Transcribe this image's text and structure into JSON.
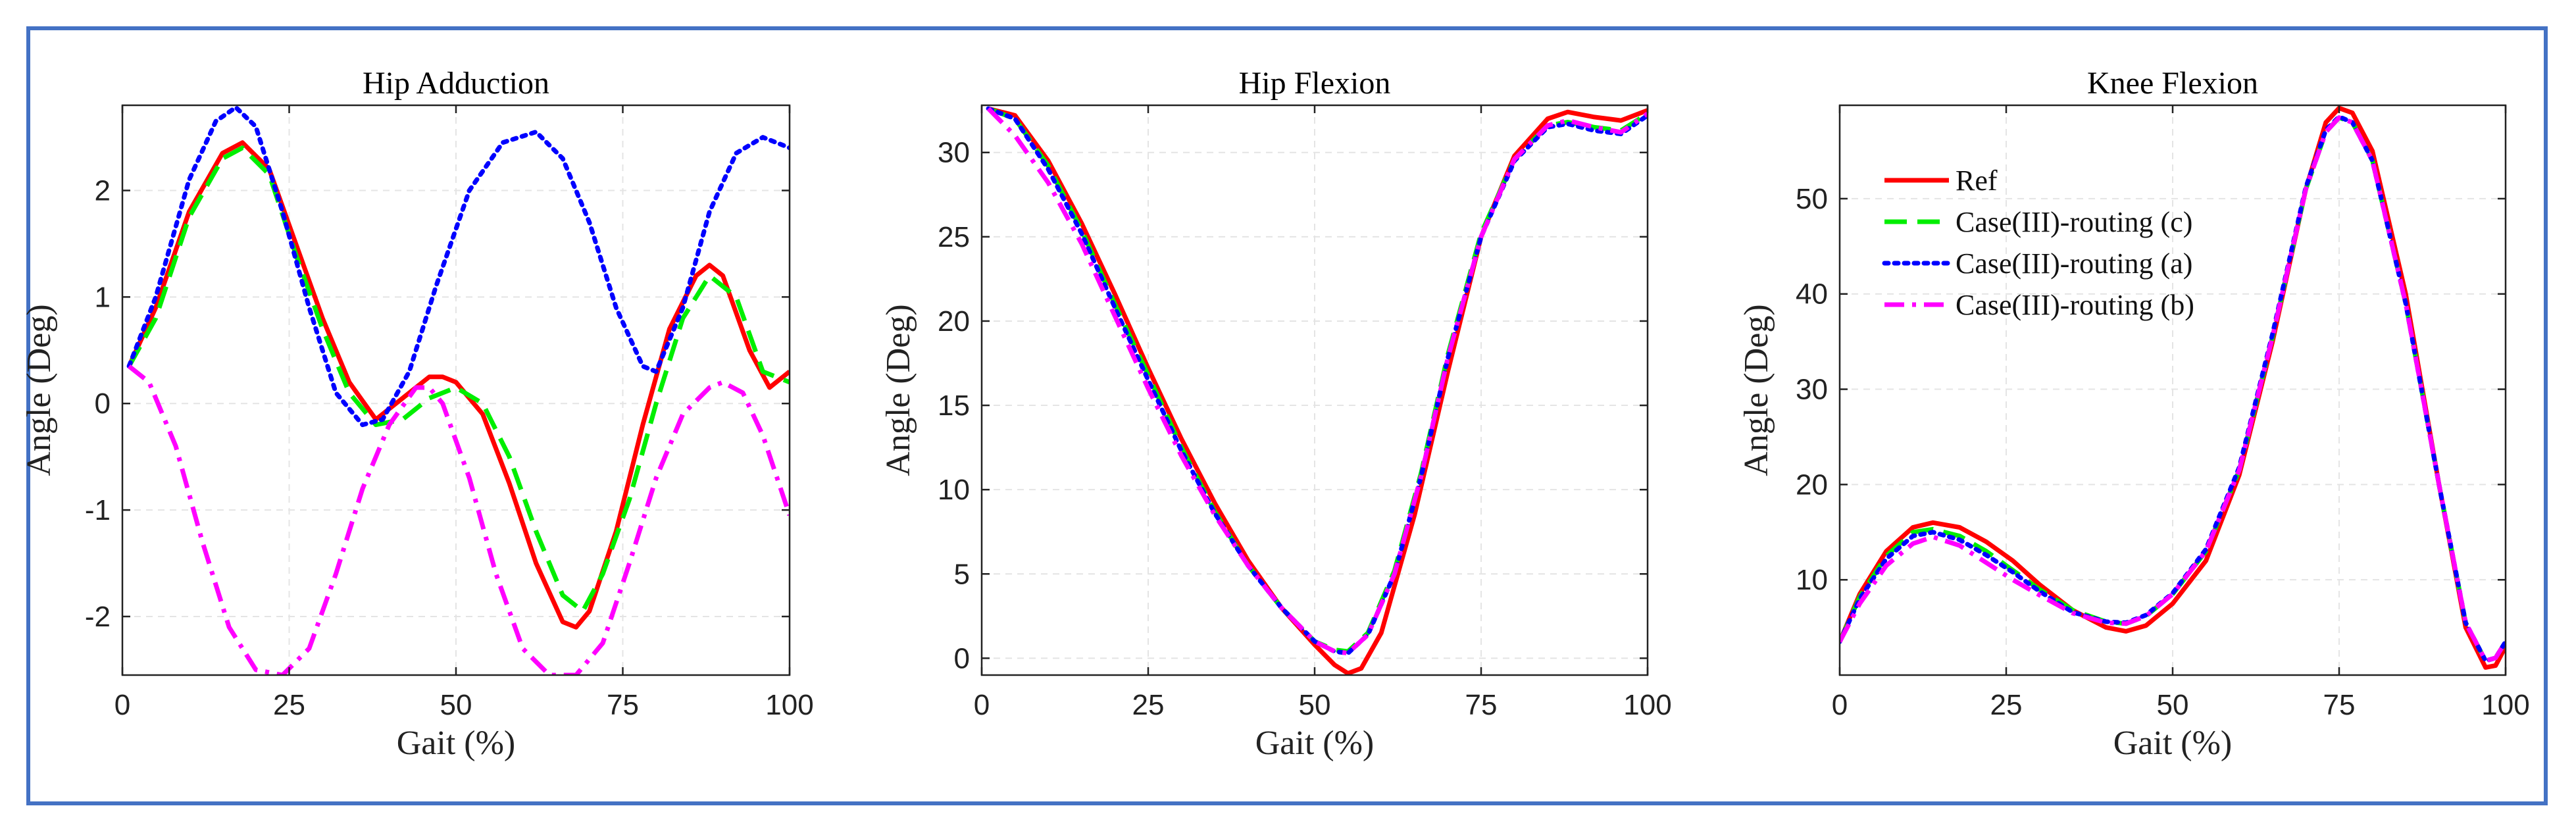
{
  "chart_data": [
    {
      "type": "line",
      "title": "Hip Adduction",
      "xlabel": "Gait (%)",
      "ylabel": "Angle (Deg)",
      "xlim": [
        0,
        100
      ],
      "ylim": [
        -2.55,
        2.8
      ],
      "xticks": [
        0,
        25,
        50,
        75,
        100
      ],
      "yticks": [
        -2,
        -1,
        0,
        1,
        2
      ],
      "grid": true,
      "series": [
        {
          "name": "Ref",
          "color": "#ff0000",
          "dash": "solid",
          "x": [
            1,
            5,
            10,
            15,
            18,
            22,
            26,
            30,
            34,
            38,
            42,
            46,
            48,
            50,
            54,
            58,
            62,
            66,
            68,
            70,
            74,
            78,
            82,
            86,
            88,
            90,
            94,
            97,
            100
          ],
          "y": [
            0.35,
            0.9,
            1.8,
            2.35,
            2.45,
            2.2,
            1.5,
            0.8,
            0.2,
            -0.15,
            0.05,
            0.25,
            0.25,
            0.2,
            -0.1,
            -0.75,
            -1.5,
            -2.05,
            -2.1,
            -1.95,
            -1.2,
            -0.2,
            0.7,
            1.2,
            1.3,
            1.2,
            0.5,
            0.15,
            0.3
          ]
        },
        {
          "name": "Case(III)-routing (c)",
          "color": "#00ee00",
          "dash": "dashed",
          "x": [
            1,
            5,
            10,
            15,
            18,
            22,
            26,
            30,
            34,
            38,
            42,
            46,
            50,
            54,
            58,
            62,
            66,
            69,
            72,
            76,
            80,
            84,
            88,
            92,
            96,
            100
          ],
          "y": [
            0.35,
            0.8,
            1.75,
            2.3,
            2.4,
            2.15,
            1.4,
            0.7,
            0.1,
            -0.2,
            -0.15,
            0.05,
            0.15,
            0.0,
            -0.5,
            -1.2,
            -1.8,
            -1.95,
            -1.6,
            -0.9,
            0.0,
            0.8,
            1.2,
            1.0,
            0.3,
            0.2
          ]
        },
        {
          "name": "Case(III)-routing (a)",
          "color": "#0000ff",
          "dash": "dotted",
          "x": [
            1,
            5,
            10,
            14,
            17,
            20,
            24,
            28,
            32,
            36,
            39,
            43,
            47,
            52,
            57,
            62,
            66,
            70,
            74,
            78,
            80,
            84,
            88,
            92,
            96,
            100
          ],
          "y": [
            0.35,
            1.0,
            2.1,
            2.65,
            2.78,
            2.6,
            1.8,
            0.9,
            0.1,
            -0.2,
            -0.15,
            0.3,
            1.1,
            2.0,
            2.45,
            2.55,
            2.3,
            1.7,
            0.9,
            0.35,
            0.3,
            0.9,
            1.8,
            2.35,
            2.5,
            2.4
          ]
        },
        {
          "name": "Case(III)-routing (b)",
          "color": "#ff00ff",
          "dash": "dashdot",
          "x": [
            1,
            4,
            8,
            12,
            16,
            20,
            24,
            28,
            32,
            36,
            40,
            44,
            46,
            48,
            52,
            56,
            60,
            64,
            68,
            72,
            76,
            80,
            84,
            88,
            90,
            93,
            96,
            100
          ],
          "y": [
            0.35,
            0.2,
            -0.4,
            -1.3,
            -2.1,
            -2.5,
            -2.55,
            -2.3,
            -1.6,
            -0.8,
            -0.2,
            0.15,
            0.15,
            0.0,
            -0.7,
            -1.6,
            -2.3,
            -2.55,
            -2.55,
            -2.25,
            -1.5,
            -0.7,
            -0.1,
            0.15,
            0.2,
            0.1,
            -0.3,
            -1.05
          ]
        }
      ]
    },
    {
      "type": "line",
      "title": "Hip Flexion",
      "xlabel": "Gait (%)",
      "ylabel": "Angle (Deg)",
      "xlim": [
        0,
        100
      ],
      "ylim": [
        -1,
        32.8
      ],
      "xticks": [
        0,
        25,
        50,
        75,
        100
      ],
      "yticks": [
        0,
        5,
        10,
        15,
        20,
        25,
        30
      ],
      "grid": true,
      "series": [
        {
          "name": "Ref",
          "color": "#ff0000",
          "dash": "solid",
          "x": [
            1,
            5,
            10,
            15,
            20,
            25,
            30,
            35,
            40,
            45,
            50,
            53,
            55,
            57,
            60,
            65,
            70,
            75,
            80,
            85,
            88,
            92,
            96,
            100
          ],
          "y": [
            32.6,
            32.2,
            29.5,
            25.8,
            21.6,
            17.2,
            13.0,
            9.2,
            5.8,
            3.0,
            0.8,
            -0.4,
            -0.9,
            -0.6,
            1.5,
            8.5,
            17.0,
            25.0,
            29.8,
            32.0,
            32.4,
            32.1,
            31.9,
            32.5
          ]
        },
        {
          "name": "Case(III)-routing (c)",
          "color": "#00ee00",
          "dash": "dashed",
          "x": [
            1,
            5,
            10,
            15,
            20,
            25,
            30,
            35,
            40,
            45,
            50,
            53,
            55,
            58,
            62,
            66,
            70,
            75,
            80,
            85,
            88,
            92,
            96,
            100
          ],
          "y": [
            32.6,
            32.0,
            29.2,
            25.4,
            21.0,
            16.8,
            12.5,
            8.7,
            5.5,
            3.0,
            1.0,
            0.5,
            0.4,
            1.5,
            5.2,
            11.0,
            18.0,
            25.2,
            29.6,
            31.6,
            31.8,
            31.5,
            31.3,
            32.3
          ]
        },
        {
          "name": "Case(III)-routing (a)",
          "color": "#0000ff",
          "dash": "dotted",
          "x": [
            1,
            5,
            10,
            15,
            20,
            25,
            30,
            35,
            40,
            45,
            50,
            53,
            55,
            58,
            62,
            66,
            70,
            75,
            80,
            85,
            88,
            92,
            96,
            100
          ],
          "y": [
            32.6,
            32.0,
            29.0,
            25.2,
            20.8,
            16.5,
            12.3,
            8.6,
            5.5,
            3.0,
            1.0,
            0.4,
            0.3,
            1.4,
            5.0,
            10.8,
            17.8,
            25.0,
            29.5,
            31.5,
            31.7,
            31.3,
            31.1,
            32.2
          ]
        },
        {
          "name": "Case(III)-routing (b)",
          "color": "#ff00ff",
          "dash": "dashdot",
          "x": [
            1,
            5,
            10,
            15,
            20,
            25,
            30,
            35,
            40,
            45,
            50,
            53,
            55,
            58,
            62,
            66,
            70,
            75,
            80,
            85,
            88,
            92,
            96,
            100
          ],
          "y": [
            32.6,
            31.0,
            28.2,
            24.6,
            20.3,
            16.0,
            12.0,
            8.5,
            5.5,
            3.0,
            1.0,
            0.4,
            0.3,
            1.4,
            5.0,
            10.8,
            17.8,
            25.0,
            29.6,
            31.6,
            31.9,
            31.5,
            31.2,
            32.3
          ]
        }
      ]
    },
    {
      "type": "line",
      "title": "Knee Flexion",
      "xlabel": "Gait (%)",
      "ylabel": "Angle (Deg)",
      "xlim": [
        0,
        100
      ],
      "ylim": [
        0,
        59.8
      ],
      "xticks": [
        0,
        25,
        50,
        75,
        100
      ],
      "yticks": [
        10,
        20,
        30,
        40,
        50
      ],
      "grid": true,
      "legend": {
        "location": "upper-left",
        "entries": [
          "Ref",
          "Case(III)-routing (c)",
          "Case(III)-routing (a)",
          "Case(III)-routing (b)"
        ]
      },
      "series": [
        {
          "name": "Ref",
          "color": "#ff0000",
          "dash": "solid",
          "x": [
            0,
            3,
            7,
            11,
            14,
            18,
            22,
            26,
            30,
            35,
            40,
            43,
            46,
            50,
            55,
            60,
            65,
            70,
            73,
            75,
            77,
            80,
            85,
            90,
            94,
            97,
            98.5,
            100
          ],
          "y": [
            3.5,
            8.5,
            13.0,
            15.5,
            16.0,
            15.5,
            14.0,
            12.0,
            9.5,
            6.8,
            5.0,
            4.6,
            5.2,
            7.5,
            12.0,
            21.0,
            35.0,
            51.0,
            58.0,
            59.5,
            59.0,
            55.0,
            40.0,
            20.0,
            5.0,
            0.8,
            1.0,
            3.0
          ]
        },
        {
          "name": "Case(III)-routing (c)",
          "color": "#00ee00",
          "dash": "dashed",
          "x": [
            0,
            3,
            7,
            11,
            14,
            18,
            22,
            26,
            30,
            35,
            40,
            43,
            46,
            50,
            55,
            60,
            65,
            70,
            73,
            75,
            77,
            80,
            85,
            90,
            94,
            97,
            98.5,
            100
          ],
          "y": [
            3.5,
            8.2,
            12.5,
            15.0,
            15.3,
            14.6,
            13.0,
            11.0,
            9.0,
            6.8,
            5.6,
            5.4,
            6.2,
            8.5,
            13.0,
            21.5,
            35.5,
            51.0,
            57.0,
            58.5,
            58.0,
            54.0,
            39.0,
            20.0,
            5.5,
            1.5,
            1.8,
            3.5
          ]
        },
        {
          "name": "Case(III)-routing (a)",
          "color": "#0000ff",
          "dash": "dotted",
          "x": [
            0,
            3,
            7,
            11,
            14,
            18,
            22,
            26,
            30,
            35,
            40,
            43,
            46,
            50,
            55,
            60,
            65,
            70,
            73,
            75,
            77,
            80,
            85,
            90,
            94,
            97,
            98.5,
            100
          ],
          "y": [
            3.5,
            8.0,
            12.2,
            14.6,
            15.0,
            14.2,
            12.6,
            10.8,
            8.8,
            6.6,
            5.6,
            5.5,
            6.3,
            8.6,
            13.2,
            21.8,
            35.8,
            51.2,
            57.2,
            58.6,
            58.0,
            54.0,
            39.0,
            20.0,
            5.5,
            1.5,
            1.8,
            3.5
          ]
        },
        {
          "name": "Case(III)-routing (b)",
          "color": "#ff00ff",
          "dash": "dashdot",
          "x": [
            0,
            3,
            7,
            11,
            14,
            18,
            22,
            26,
            30,
            35,
            40,
            43,
            46,
            50,
            55,
            60,
            65,
            70,
            73,
            75,
            77,
            80,
            85,
            90,
            94,
            97,
            98.5,
            100
          ],
          "y": [
            3.5,
            7.5,
            11.5,
            13.8,
            14.5,
            13.6,
            11.8,
            10.0,
            8.4,
            6.5,
            5.5,
            5.4,
            6.2,
            8.5,
            13.0,
            21.5,
            35.5,
            51.0,
            57.0,
            58.5,
            58.0,
            54.0,
            39.0,
            20.0,
            5.5,
            1.5,
            1.8,
            3.5
          ]
        }
      ]
    }
  ]
}
